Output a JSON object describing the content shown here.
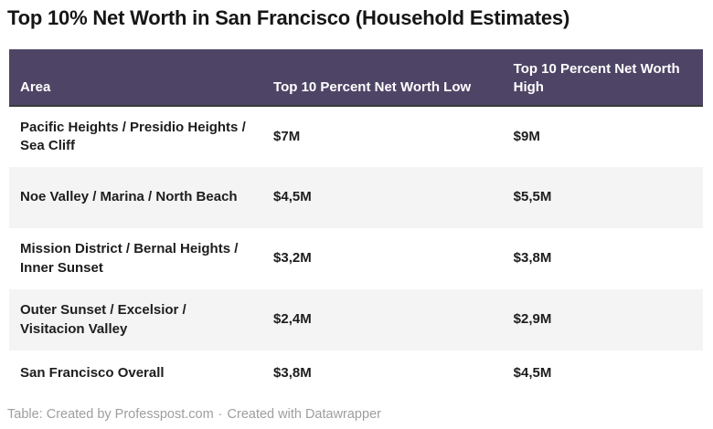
{
  "chart_data": {
    "type": "table",
    "title": "Top 10% Net Worth in San Francisco (Household Estimates)",
    "columns": [
      "Area",
      "Top 10 Percent Net Worth Low",
      "Top 10 Percent Net Worth High"
    ],
    "rows": [
      [
        "Pacific Heights / Presidio Heights / Sea Cliff",
        "$7M",
        "$9M"
      ],
      [
        "Noe Valley / Marina / North Beach",
        "$4,5M",
        "$5,5M"
      ],
      [
        "Mission District / Bernal Heights / Inner Sunset",
        "$3,2M",
        "$3,8M"
      ],
      [
        "Outer Sunset / Excelsior / Visitacion Valley",
        "$2,4M",
        "$2,9M"
      ],
      [
        "San Francisco Overall",
        "$3,8M",
        "$4,5M"
      ]
    ],
    "values_numeric_millions": {
      "low": [
        7,
        4.5,
        3.2,
        2.4,
        3.8
      ],
      "high": [
        9,
        5.5,
        3.8,
        2.9,
        4.5
      ]
    },
    "layout": {
      "alternating_rows": true,
      "header_position": "top"
    }
  },
  "footer": {
    "attribution": "Table: Created by Professpost.com",
    "separator": "·",
    "credit": "Created with Datawrapper"
  },
  "colors": {
    "header_bg": "#4e4566",
    "header_text": "#ffffff",
    "header_border": "#3a3a3a",
    "row_alt_bg": "#f4f4f4",
    "body_text": "#1d1d1d",
    "title_text": "#161616",
    "footer_text": "#9e9e9e"
  }
}
